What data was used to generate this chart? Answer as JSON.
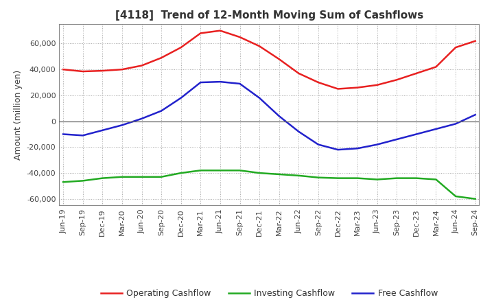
{
  "title": "[4118]  Trend of 12-Month Moving Sum of Cashflows",
  "ylabel": "Amount (million yen)",
  "xlim_labels": [
    "Jun-19",
    "Sep-19",
    "Dec-19",
    "Mar-20",
    "Jun-20",
    "Sep-20",
    "Dec-20",
    "Mar-21",
    "Jun-21",
    "Sep-21",
    "Dec-21",
    "Mar-22",
    "Jun-22",
    "Sep-22",
    "Dec-22",
    "Mar-23",
    "Jun-23",
    "Sep-23",
    "Dec-23",
    "Mar-24",
    "Jun-24",
    "Sep-24"
  ],
  "operating_cashflow": [
    40000,
    38500,
    39000,
    40000,
    43000,
    49000,
    57000,
    68000,
    70000,
    65000,
    58000,
    48000,
    37000,
    30000,
    25000,
    26000,
    28000,
    32000,
    37000,
    42000,
    57000,
    62000
  ],
  "investing_cashflow": [
    -47000,
    -46000,
    -44000,
    -43000,
    -43000,
    -43000,
    -40000,
    -38000,
    -38000,
    -38000,
    -40000,
    -41000,
    -42000,
    -43500,
    -44000,
    -44000,
    -45000,
    -44000,
    -44000,
    -45000,
    -58000,
    -60000
  ],
  "free_cashflow": [
    -10000,
    -11000,
    -7000,
    -3000,
    2000,
    8000,
    18000,
    30000,
    30500,
    29000,
    18000,
    4000,
    -8000,
    -18000,
    -22000,
    -21000,
    -18000,
    -14000,
    -10000,
    -6000,
    -2000,
    5000
  ],
  "operating_color": "#e82020",
  "investing_color": "#22aa22",
  "free_color": "#2222cc",
  "ylim": [
    -65000,
    75000
  ],
  "yticks": [
    -60000,
    -40000,
    -20000,
    0,
    20000,
    40000,
    60000
  ],
  "legend_labels": [
    "Operating Cashflow",
    "Investing Cashflow",
    "Free Cashflow"
  ],
  "background_color": "#ffffff",
  "grid_color": "#aaaaaa",
  "title_fontsize": 11,
  "axis_fontsize": 8,
  "legend_fontsize": 9
}
